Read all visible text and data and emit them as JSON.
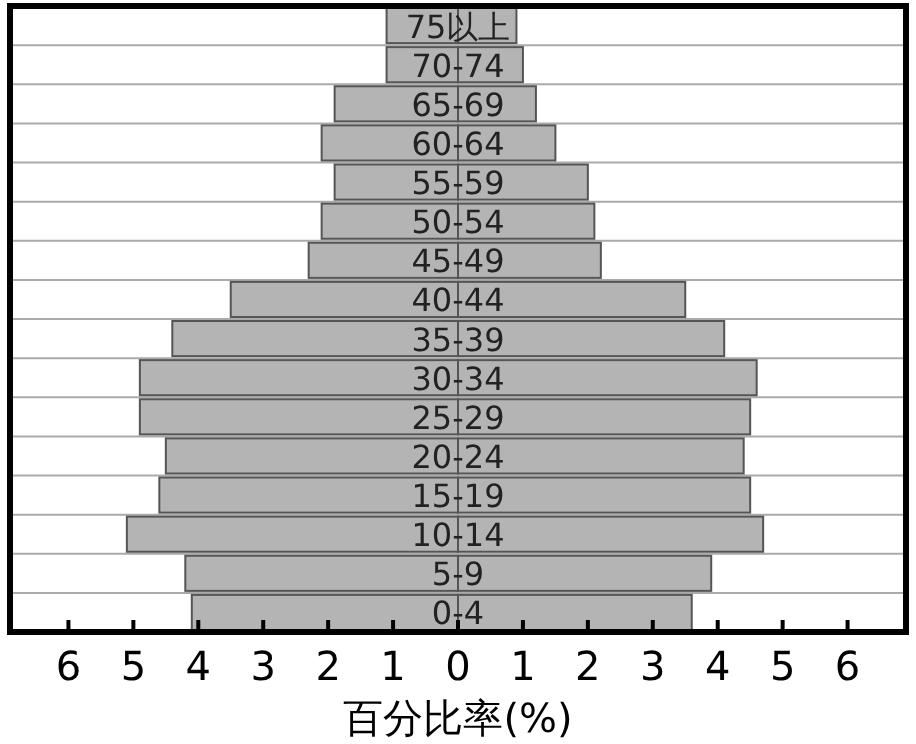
{
  "chart_data": {
    "type": "bar",
    "orientation": "horizontal",
    "xlabel": "百分比率(%)",
    "categories": [
      "75以上",
      "70-74",
      "65-69",
      "60-64",
      "55-59",
      "50-54",
      "45-49",
      "40-44",
      "35-39",
      "30-34",
      "25-29",
      "20-24",
      "15-19",
      "10-14",
      "5-9",
      "0-4"
    ],
    "series": [
      {
        "color": "#b4b4b4",
        "values": [
          -1.1,
          -1.1,
          -1.9,
          -2.1,
          -1.9,
          -2.1,
          -2.3,
          -3.5,
          -4.4,
          -4.9,
          -4.9,
          -4.5,
          -4.6,
          -5.1,
          -4.2,
          -4.1
        ]
      },
      {
        "color": "#b4b4b4",
        "values": [
          0.9,
          1.0,
          1.2,
          1.5,
          2.0,
          2.1,
          2.2,
          3.5,
          4.1,
          4.6,
          4.5,
          4.4,
          4.5,
          4.7,
          3.9,
          3.6
        ]
      }
    ],
    "xlim": [
      -6.9,
      6.9
    ],
    "xticks": [
      {
        "value": -6,
        "label": "6"
      },
      {
        "value": -5,
        "label": "5"
      },
      {
        "value": -4,
        "label": "4"
      },
      {
        "value": -3,
        "label": "3"
      },
      {
        "value": -2,
        "label": "2"
      },
      {
        "value": -1,
        "label": "1"
      },
      0,
      1,
      2,
      3,
      4,
      5,
      6
    ],
    "grid": "y",
    "stacked": true
  }
}
